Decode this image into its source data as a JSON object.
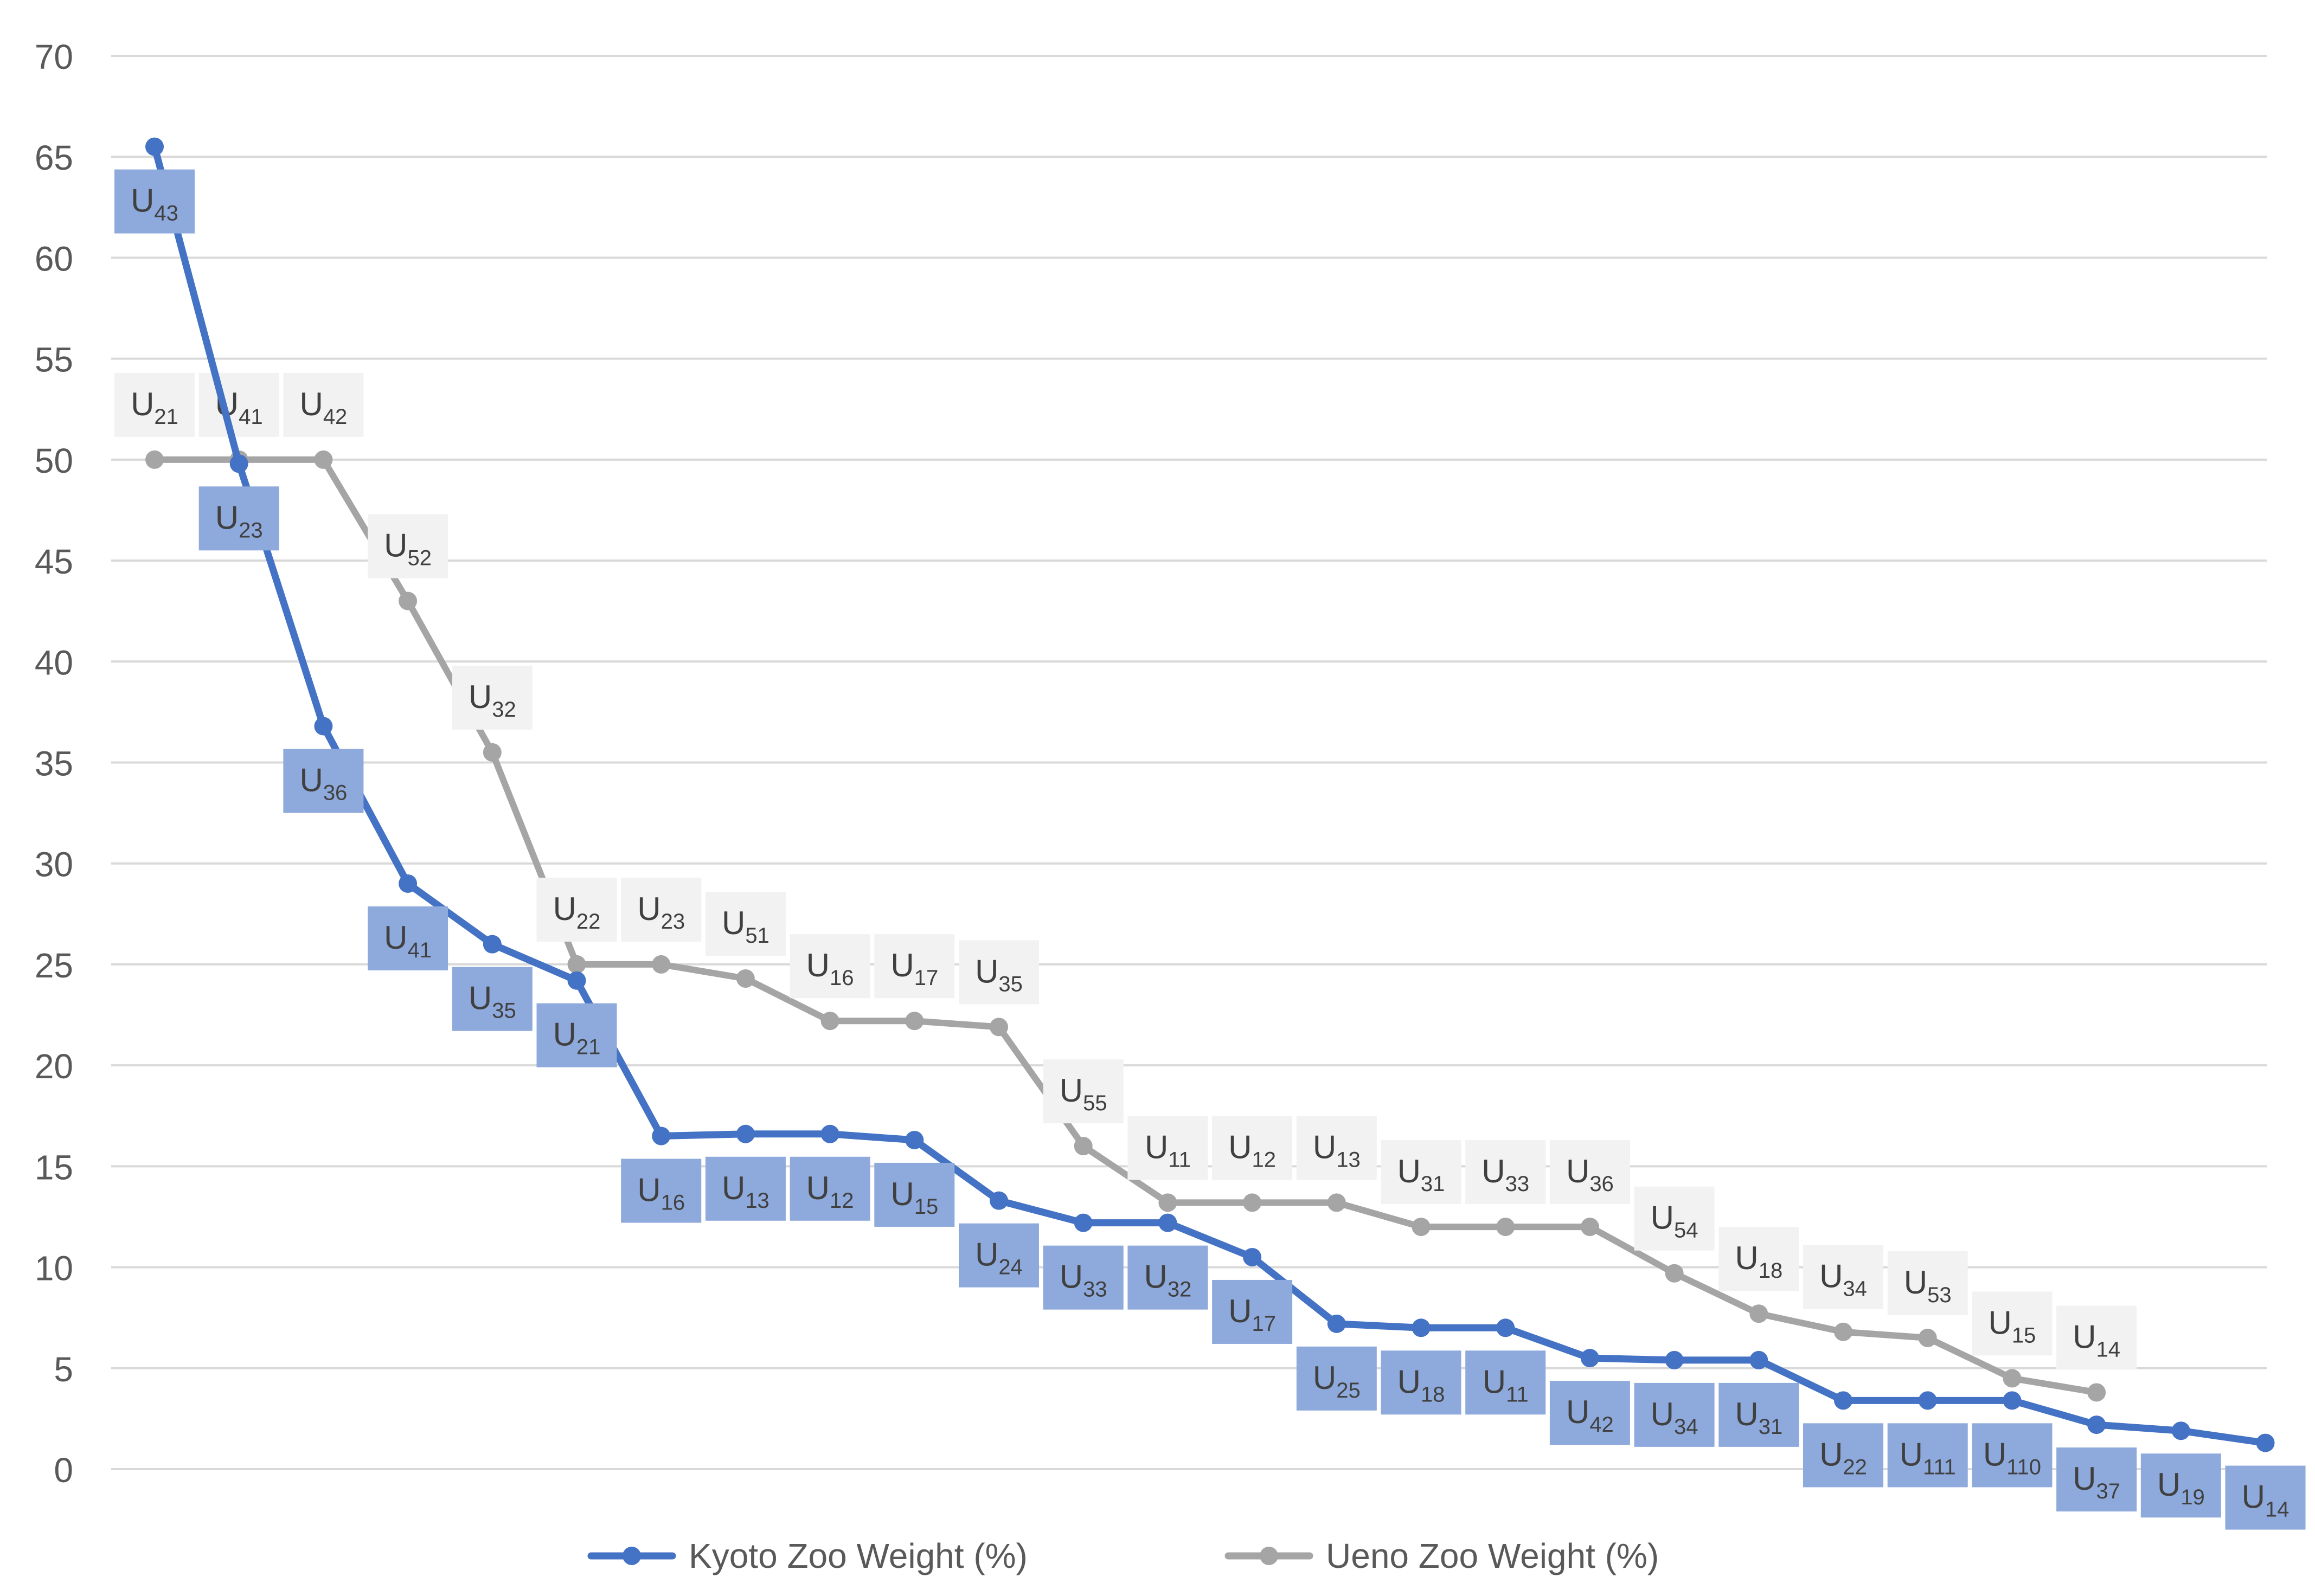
{
  "chart_data": {
    "type": "line",
    "title": "",
    "xlabel": "",
    "ylabel": "",
    "ylim": [
      0,
      70
    ],
    "y_ticks": [
      0,
      5,
      10,
      15,
      20,
      25,
      30,
      35,
      40,
      45,
      50,
      55,
      60,
      65,
      70
    ],
    "grid": true,
    "legend_position": "bottom",
    "series": [
      {
        "name": "Kyoto Zoo Weight (%)",
        "color": "#4472C4",
        "label_bg": "#8EA9DB",
        "labels": [
          "U43",
          "U23",
          "U36",
          "U41",
          "U35",
          "U21",
          "U16",
          "U13",
          "U12",
          "U15",
          "U24",
          "U33",
          "U32",
          "U17",
          "U25",
          "U18",
          "U11",
          "U42",
          "U34",
          "U31",
          "U22",
          "U111",
          "U110",
          "U37",
          "U19",
          "U14"
        ],
        "values": [
          65.5,
          49.8,
          36.8,
          29.0,
          26.0,
          24.2,
          16.5,
          16.6,
          16.6,
          16.3,
          13.3,
          12.2,
          12.2,
          10.5,
          7.2,
          7.0,
          7.0,
          5.5,
          5.4,
          5.4,
          3.4,
          3.4,
          3.4,
          2.2,
          1.9,
          1.3
        ]
      },
      {
        "name": "Ueno Zoo Weight (%)",
        "color": "#A5A5A5",
        "label_bg": "#F2F2F2",
        "labels": [
          "U21",
          "U41",
          "U42",
          "U52",
          "U32",
          "U22",
          "U23",
          "U51",
          "U16",
          "U17",
          "U35",
          "U55",
          "U11",
          "U12",
          "U13",
          "U31",
          "U33",
          "U36",
          "U54",
          "U18",
          "U34",
          "U53",
          "U15",
          "U14"
        ],
        "values": [
          50.0,
          50.0,
          50.0,
          43.0,
          35.5,
          25.0,
          25.0,
          24.3,
          22.2,
          22.2,
          21.9,
          16.0,
          13.2,
          13.2,
          13.2,
          12.0,
          12.0,
          12.0,
          9.7,
          7.7,
          6.8,
          6.5,
          4.5,
          3.8
        ]
      }
    ]
  }
}
